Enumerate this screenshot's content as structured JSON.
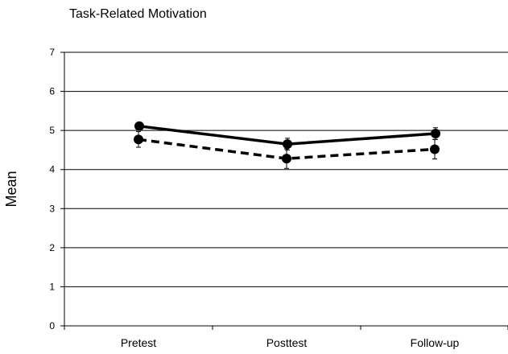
{
  "chart_data": {
    "type": "line",
    "title": "Task-Related Motivation",
    "xlabel": "",
    "ylabel": "Mean",
    "categories": [
      "Pretest",
      "Posttest",
      "Follow-up"
    ],
    "ylim": [
      0,
      7
    ],
    "yticks": [
      "0",
      "1",
      "2",
      "3",
      "4",
      "5",
      "6",
      "7"
    ],
    "grid": true,
    "legend": "none",
    "series": [
      {
        "style": "solid",
        "color": "#000000",
        "values": [
          5.11,
          4.65,
          4.92
        ],
        "error": [
          0.08,
          0.15,
          0.15
        ]
      },
      {
        "style": "dashed",
        "color": "#000000",
        "values": [
          4.77,
          4.28,
          4.52
        ],
        "error": [
          0.2,
          0.25,
          0.25
        ]
      }
    ]
  }
}
